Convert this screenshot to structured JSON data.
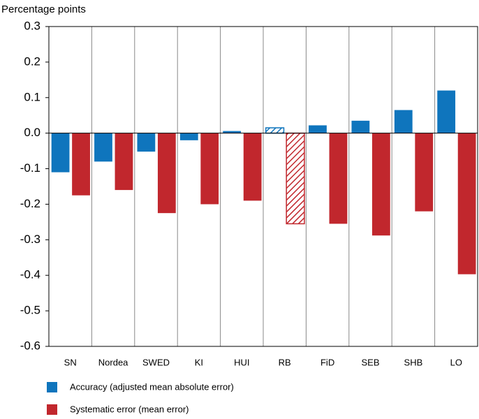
{
  "chart_data": {
    "type": "bar",
    "y_label": "Percentage points",
    "categories": [
      "SN",
      "Nordea",
      "SWED",
      "KI",
      "HUI",
      "RB",
      "FiD",
      "SEB",
      "SHB",
      "LO"
    ],
    "series": [
      {
        "name": "Accuracy (adjusted mean absolute error)",
        "color": "#0f75bd",
        "values": [
          -0.11,
          -0.08,
          -0.052,
          -0.02,
          0.006,
          0.015,
          0.022,
          0.035,
          0.065,
          0.12
        ]
      },
      {
        "name": "Systematic error (mean error)",
        "color": "#c1272d",
        "values": [
          -0.175,
          -0.16,
          -0.225,
          -0.2,
          -0.19,
          -0.255,
          -0.255,
          -0.288,
          -0.22,
          -0.397
        ]
      }
    ],
    "hatched_index": 5,
    "ylim": [
      -0.6,
      0.3
    ],
    "yticks": [
      -0.6,
      -0.5,
      -0.4,
      -0.3,
      -0.2,
      -0.1,
      {
        "value": 0,
        "label": "0.0"
      },
      0.1,
      0.2,
      0.3
    ],
    "legend": "bottom-left"
  }
}
